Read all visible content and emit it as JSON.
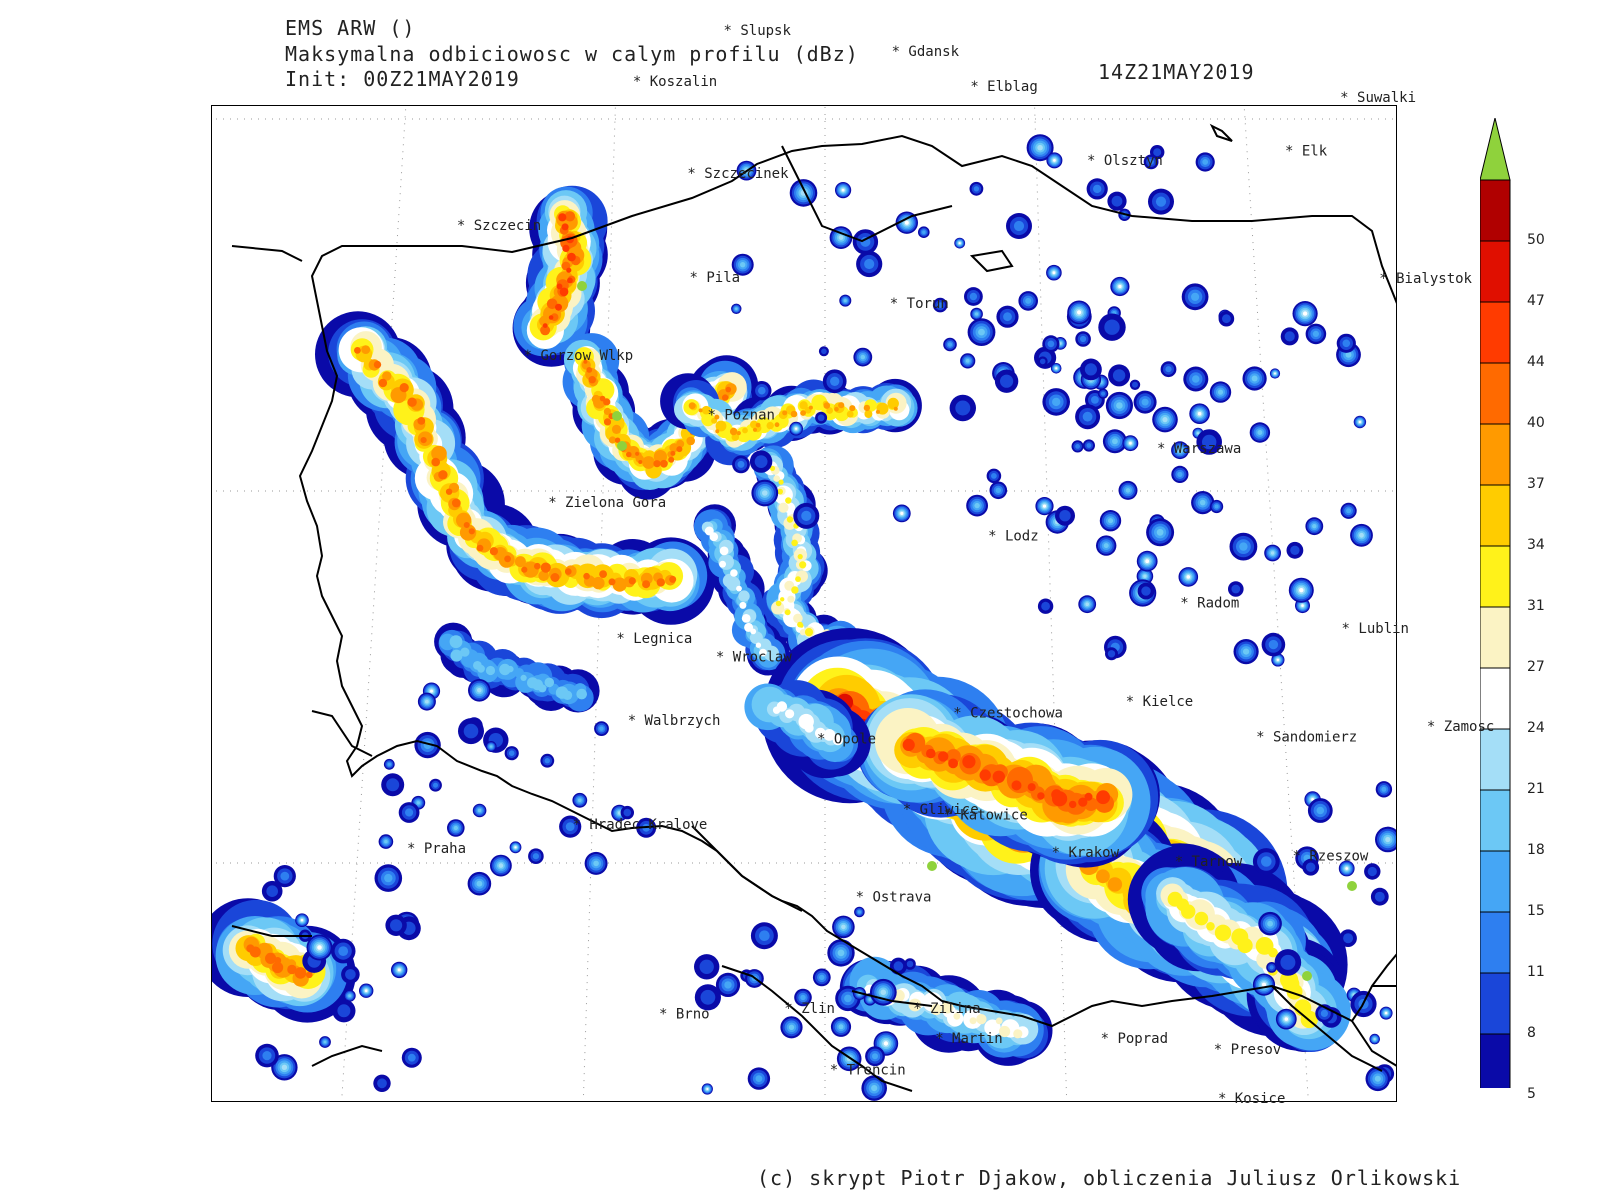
{
  "header": {
    "model": "EMS ARW ()",
    "field": "Maksymalna odbiciowosc w calym profilu (dBz)",
    "init": "Init: 00Z21MAY2019",
    "valid": "14Z21MAY2019"
  },
  "colorbar": {
    "levels": [
      "5",
      "8",
      "11",
      "15",
      "18",
      "21",
      "24",
      "27",
      "31",
      "34",
      "37",
      "40",
      "44",
      "47",
      "50"
    ],
    "colors": [
      "#0a0aa8",
      "#1a46d9",
      "#2e7ff0",
      "#45a6f5",
      "#6cc8f5",
      "#a4def7",
      "#ffffff",
      "#fbf3c4",
      "#fff21a",
      "#ffcc00",
      "#ff9a00",
      "#ff6a00",
      "#ff3b00",
      "#e00f00",
      "#b00000"
    ],
    "over_color": "#8fd23c",
    "under_color": "#ffffff"
  },
  "cities": [
    {
      "name": "Slupsk",
      "lon": 17.03,
      "lat": 54.46
    },
    {
      "name": "Koszalin",
      "lon": 16.17,
      "lat": 54.19
    },
    {
      "name": "Gdansk",
      "lon": 18.65,
      "lat": 54.35
    },
    {
      "name": "Elblag",
      "lon": 19.4,
      "lat": 54.16
    },
    {
      "name": "Suwalki",
      "lon": 22.93,
      "lat": 54.1
    },
    {
      "name": "Olsztyn",
      "lon": 20.48,
      "lat": 53.78
    },
    {
      "name": "Elk",
      "lon": 22.36,
      "lat": 53.83
    },
    {
      "name": "Szczecinek",
      "lon": 16.7,
      "lat": 53.71
    },
    {
      "name": "Szczecin",
      "lon": 14.55,
      "lat": 53.43
    },
    {
      "name": "Bialystok",
      "lon": 23.16,
      "lat": 53.13
    },
    {
      "name": "Pila",
      "lon": 16.74,
      "lat": 53.15
    },
    {
      "name": "Torun",
      "lon": 18.6,
      "lat": 53.01
    },
    {
      "name": "Gorzow Wlkp",
      "lon": 15.23,
      "lat": 52.73
    },
    {
      "name": "Poznan",
      "lon": 16.93,
      "lat": 52.41
    },
    {
      "name": "Warszawa",
      "lon": 21.01,
      "lat": 52.23
    },
    {
      "name": "Zielona Gora",
      "lon": 15.51,
      "lat": 51.94
    },
    {
      "name": "Lodz",
      "lon": 19.46,
      "lat": 51.76
    },
    {
      "name": "Radom",
      "lon": 21.15,
      "lat": 51.4
    },
    {
      "name": "Lublin",
      "lon": 22.57,
      "lat": 51.25
    },
    {
      "name": "Legnica",
      "lon": 16.16,
      "lat": 51.21
    },
    {
      "name": "Wroclaw",
      "lon": 17.04,
      "lat": 51.11
    },
    {
      "name": "Walbrzych",
      "lon": 16.28,
      "lat": 50.77
    },
    {
      "name": "Czestochowa",
      "lon": 19.12,
      "lat": 50.81
    },
    {
      "name": "Kielce",
      "lon": 20.63,
      "lat": 50.87
    },
    {
      "name": "Sandomierz",
      "lon": 21.75,
      "lat": 50.68
    },
    {
      "name": "Zamosc",
      "lon": 23.25,
      "lat": 50.72
    },
    {
      "name": "Opole",
      "lon": 17.93,
      "lat": 50.67
    },
    {
      "name": "Hradec Kralove",
      "lon": 15.83,
      "lat": 50.21
    },
    {
      "name": "Gliwice",
      "lon": 18.67,
      "lat": 50.29
    },
    {
      "name": "Katowice",
      "lon": 19.02,
      "lat": 50.26
    },
    {
      "name": "Praha",
      "lon": 14.42,
      "lat": 50.08
    },
    {
      "name": "Krakow",
      "lon": 19.94,
      "lat": 50.06
    },
    {
      "name": "Tarnow",
      "lon": 20.99,
      "lat": 50.01
    },
    {
      "name": "Rzeszow",
      "lon": 22.0,
      "lat": 50.04
    },
    {
      "name": "Ostrava",
      "lon": 18.26,
      "lat": 49.82
    },
    {
      "name": "Brno",
      "lon": 16.61,
      "lat": 49.19
    },
    {
      "name": "Zlin",
      "lon": 17.66,
      "lat": 49.22
    },
    {
      "name": "Zilina",
      "lon": 18.74,
      "lat": 49.22
    },
    {
      "name": "Martin",
      "lon": 18.92,
      "lat": 49.06
    },
    {
      "name": "Poprad",
      "lon": 20.3,
      "lat": 49.06
    },
    {
      "name": "Presov",
      "lon": 21.24,
      "lat": 49.0
    },
    {
      "name": "Trencin",
      "lon": 18.04,
      "lat": 48.89
    },
    {
      "name": "Kosice",
      "lon": 21.26,
      "lat": 48.72
    }
  ],
  "credit": "(c) skrypt Piotr Djakow, obliczenia Juliusz Orlikowski"
}
